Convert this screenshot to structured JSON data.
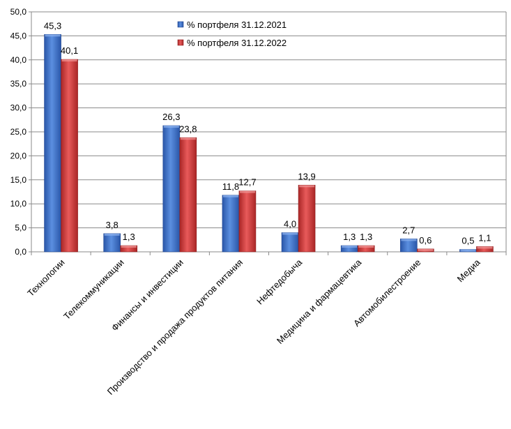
{
  "chart_data": {
    "type": "bar",
    "categories": [
      "Технологии",
      "Телекоммуникации",
      "Финансы и инвестиции",
      "Производство и продажа продуктов питания",
      "Нефтедобыча",
      "Медицина и фармацевтика",
      "Автомобилестроение",
      "Медиа"
    ],
    "series": [
      {
        "name": "% портфеля 31.12.2021",
        "color": "#3a6fc8",
        "values": [
          45.3,
          3.8,
          26.3,
          11.8,
          4.0,
          1.3,
          2.7,
          0.5
        ],
        "labels": [
          "45,3",
          "3,8",
          "26,3",
          "11,8",
          "4,0",
          "1,3",
          "2,7",
          "0,5"
        ]
      },
      {
        "name": "% портфеля 31.12.2022",
        "color": "#cf3a3a",
        "values": [
          40.1,
          1.3,
          23.8,
          12.7,
          13.9,
          1.3,
          0.6,
          1.1
        ],
        "labels": [
          "40,1",
          "1,3",
          "23,8",
          "12,7",
          "13,9",
          "1,3",
          "0,6",
          "1,1"
        ]
      }
    ],
    "ylim": [
      0,
      50
    ],
    "yticks": [
      "0,0",
      "5,0",
      "10,0",
      "15,0",
      "20,0",
      "25,0",
      "30,0",
      "35,0",
      "40,0",
      "45,0",
      "50,0"
    ],
    "grid": true,
    "legend_position": "top-center"
  }
}
